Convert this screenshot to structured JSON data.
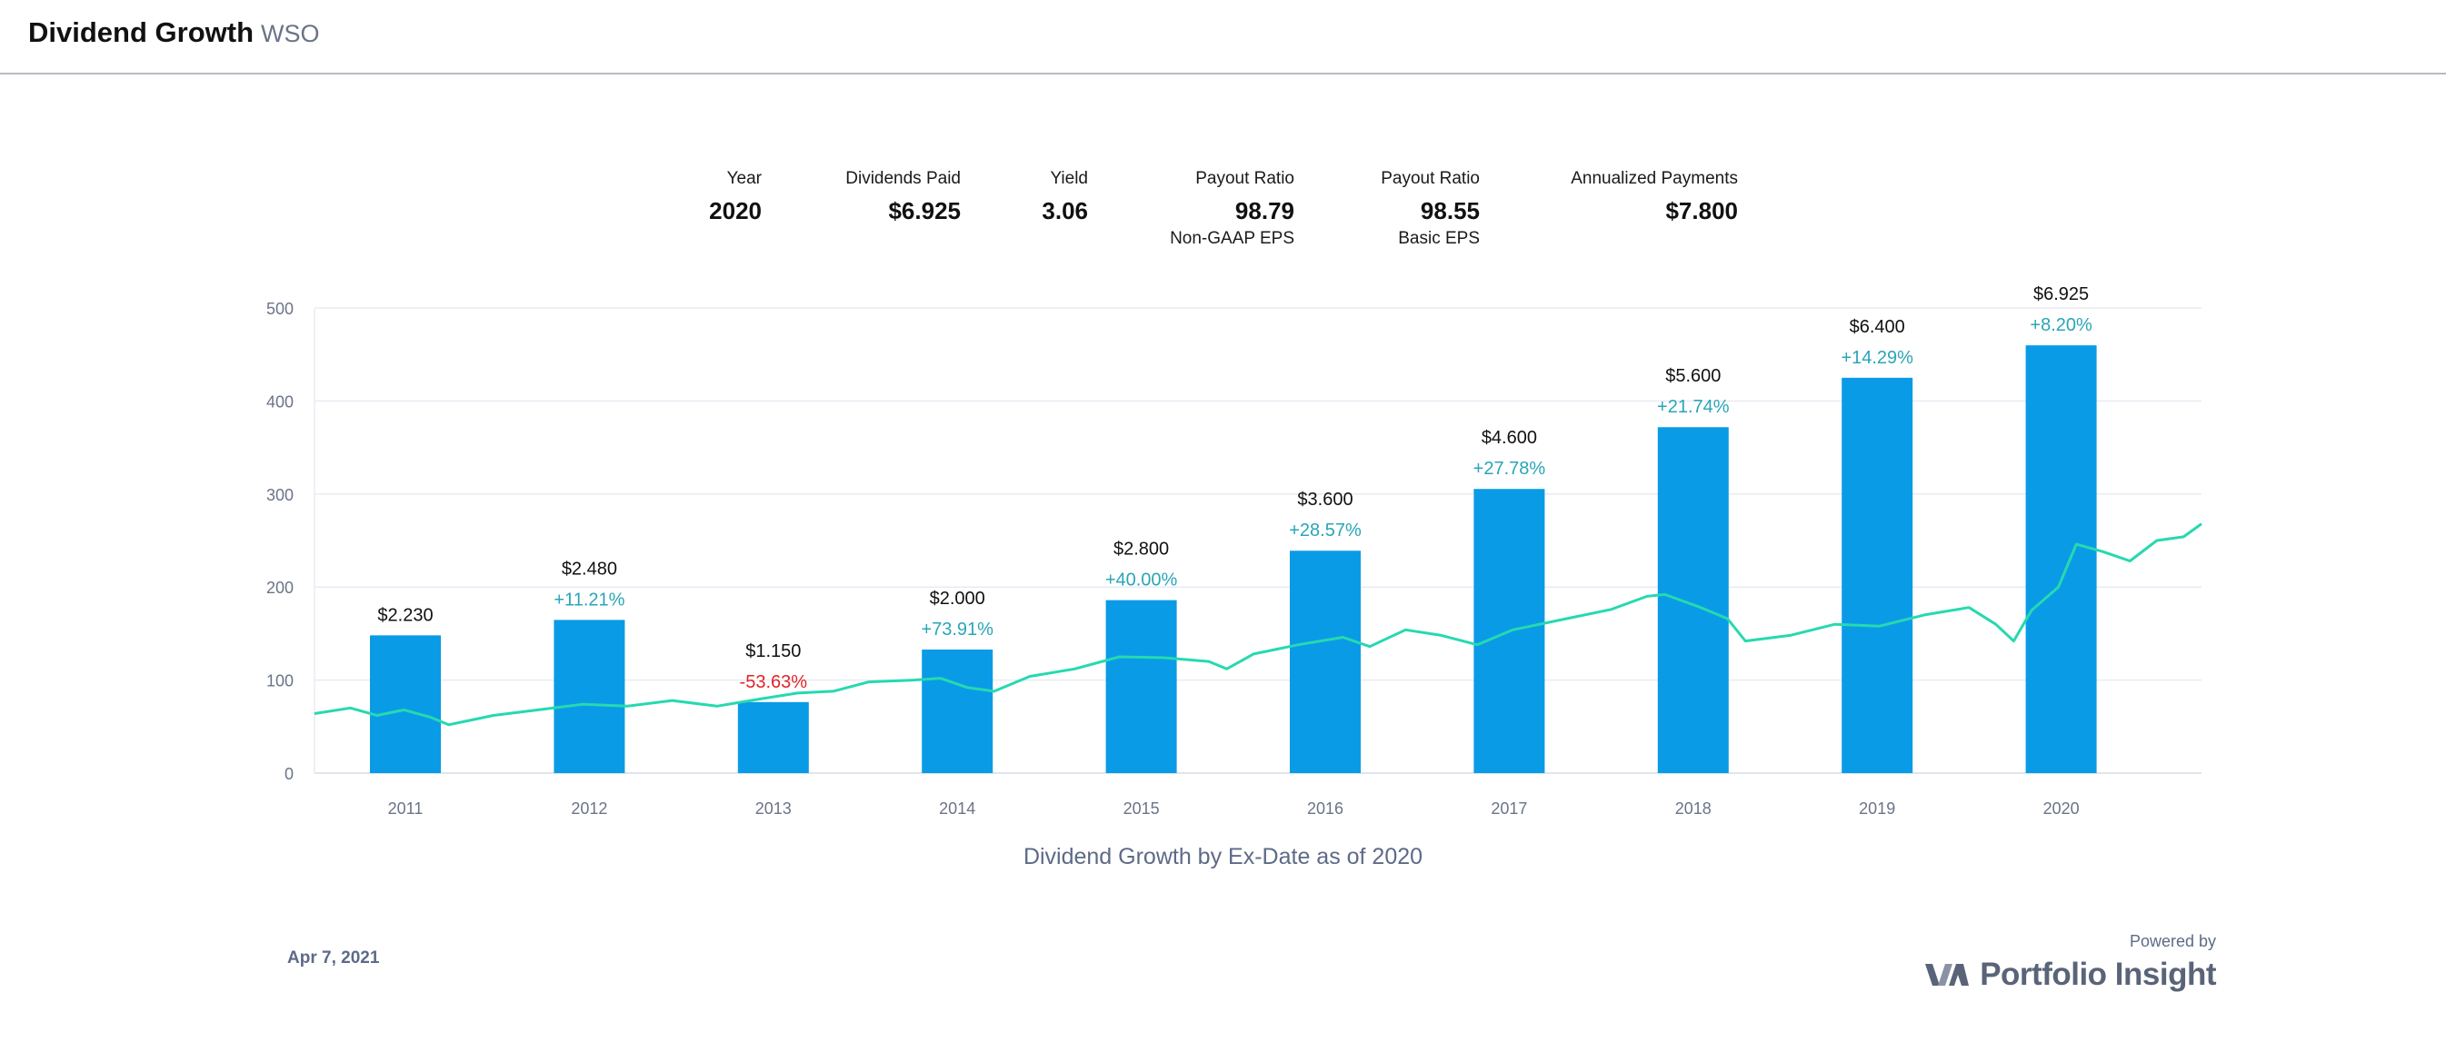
{
  "header": {
    "title": "Dividend Growth",
    "ticker": "WSO"
  },
  "stats": [
    {
      "label": "Year",
      "value": "2020",
      "sub": ""
    },
    {
      "label": "Dividends Paid",
      "value": "$6.925",
      "sub": ""
    },
    {
      "label": "Yield",
      "value": "3.06",
      "sub": ""
    },
    {
      "label": "Payout Ratio",
      "value": "98.79",
      "sub": "Non-GAAP EPS"
    },
    {
      "label": "Payout Ratio",
      "value": "98.55",
      "sub": "Basic EPS"
    },
    {
      "label": "Annualized Payments",
      "value": "$7.800",
      "sub": ""
    }
  ],
  "chart_data": {
    "type": "bar",
    "title": "",
    "caption": "Dividend Growth by Ex-Date as of 2020",
    "categories": [
      "2011",
      "2012",
      "2013",
      "2014",
      "2015",
      "2016",
      "2017",
      "2018",
      "2019",
      "2020"
    ],
    "series": [
      {
        "values": [
          2.23,
          2.48,
          1.15,
          2.0,
          2.8,
          3.6,
          4.6,
          5.6,
          6.4,
          6.925
        ],
        "value_labels": [
          "$2.230",
          "$2.480",
          "$1.150",
          "$2.000",
          "$2.800",
          "$3.600",
          "$4.600",
          "$5.600",
          "$6.400",
          "$6.925"
        ],
        "growth_labels": [
          "",
          "+11.21%",
          "-53.63%",
          "+73.91%",
          "+40.00%",
          "+28.57%",
          "+27.78%",
          "+21.74%",
          "+14.29%",
          "+8.20%"
        ],
        "color": "#0a9be6"
      },
      {
        "type": "line",
        "color": "#26d9b0",
        "points": [
          [
            2010.5,
            64
          ],
          [
            2010.7,
            70
          ],
          [
            2010.85,
            62
          ],
          [
            2011.0,
            68
          ],
          [
            2011.15,
            60
          ],
          [
            2011.25,
            52
          ],
          [
            2011.5,
            62
          ],
          [
            2011.75,
            68
          ],
          [
            2012.0,
            74
          ],
          [
            2012.25,
            72
          ],
          [
            2012.5,
            78
          ],
          [
            2012.75,
            72
          ],
          [
            2013.0,
            80
          ],
          [
            2013.2,
            86
          ],
          [
            2013.4,
            88
          ],
          [
            2013.6,
            98
          ],
          [
            2013.85,
            100
          ],
          [
            2014.0,
            102
          ],
          [
            2014.15,
            92
          ],
          [
            2014.3,
            88
          ],
          [
            2014.5,
            104
          ],
          [
            2014.75,
            112
          ],
          [
            2015.0,
            125
          ],
          [
            2015.25,
            124
          ],
          [
            2015.5,
            120
          ],
          [
            2015.6,
            112
          ],
          [
            2015.75,
            128
          ],
          [
            2016.0,
            138
          ],
          [
            2016.25,
            146
          ],
          [
            2016.4,
            136
          ],
          [
            2016.6,
            154
          ],
          [
            2016.8,
            148
          ],
          [
            2017.0,
            138
          ],
          [
            2017.2,
            154
          ],
          [
            2017.5,
            166
          ],
          [
            2017.75,
            176
          ],
          [
            2017.95,
            190
          ],
          [
            2018.05,
            192
          ],
          [
            2018.25,
            178
          ],
          [
            2018.4,
            166
          ],
          [
            2018.5,
            142
          ],
          [
            2018.75,
            148
          ],
          [
            2019.0,
            160
          ],
          [
            2019.25,
            158
          ],
          [
            2019.5,
            170
          ],
          [
            2019.75,
            178
          ],
          [
            2019.9,
            160
          ],
          [
            2020.0,
            142
          ],
          [
            2020.1,
            175
          ],
          [
            2020.25,
            200
          ],
          [
            2020.35,
            246
          ],
          [
            2020.5,
            238
          ],
          [
            2020.65,
            228
          ],
          [
            2020.8,
            250
          ],
          [
            2020.95,
            254
          ],
          [
            2021.05,
            268
          ]
        ]
      }
    ],
    "yticks": [
      0,
      100,
      200,
      300,
      400,
      500
    ],
    "xrange": [
      2010.5,
      2021.05
    ],
    "yrange": [
      0,
      500
    ],
    "bar_scale_max": 7.53,
    "grid": true
  },
  "footer": {
    "date": "Apr 7, 2021",
    "powered_by": "Powered by",
    "brand": "Portfolio Insight"
  }
}
